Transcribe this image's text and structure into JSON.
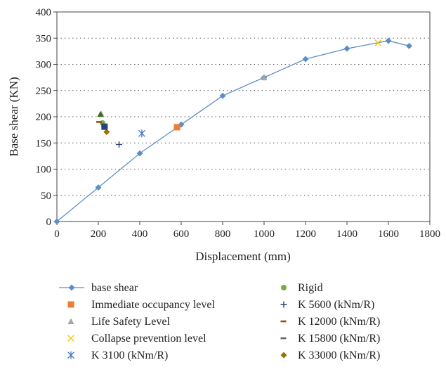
{
  "chart_data": {
    "type": "scatter",
    "xlabel": "Displacement (mm)",
    "ylabel": "Base shear (KN)",
    "xlim": [
      0,
      1800
    ],
    "ylim": [
      0,
      400
    ],
    "x_ticks": [
      0,
      200,
      400,
      600,
      800,
      1000,
      1200,
      1400,
      1600,
      1800
    ],
    "y_ticks": [
      0,
      50,
      100,
      150,
      200,
      250,
      300,
      350,
      400
    ],
    "grid": "dotted horizontal",
    "legend_position": "bottom",
    "series": [
      {
        "name": "base shear",
        "kind": "line",
        "marker": "diamond",
        "color": "#5b8fca",
        "points": [
          [
            0,
            0
          ],
          [
            200,
            65
          ],
          [
            400,
            130
          ],
          [
            600,
            185
          ],
          [
            800,
            240
          ],
          [
            1000,
            275
          ],
          [
            1200,
            310
          ],
          [
            1400,
            330
          ],
          [
            1600,
            345
          ],
          [
            1700,
            335
          ]
        ]
      },
      {
        "name": "Immediate occupancy level",
        "marker": "square",
        "color": "#ed7d31",
        "points": [
          [
            580,
            180
          ]
        ]
      },
      {
        "name": "Life Safety Level",
        "marker": "triangle",
        "color": "#a5a5a5",
        "points": [
          [
            1000,
            275
          ],
          [
            215,
            205
          ]
        ]
      },
      {
        "name": "Collapse prevention level",
        "marker": "x",
        "color": "#ffc000",
        "points": [
          [
            1550,
            341
          ]
        ]
      },
      {
        "name": "K 3100 (kNm/R)",
        "marker": "star",
        "color": "#4472c4",
        "points": [
          [
            410,
            168
          ]
        ]
      },
      {
        "name": "Rigid",
        "marker": "circle",
        "color": "#70ad47",
        "points": [
          [
            220,
            188
          ]
        ]
      },
      {
        "name": "K 5600 (kNm/R)",
        "marker": "plus",
        "color": "#264478",
        "points": [
          [
            300,
            147
          ]
        ]
      },
      {
        "name": "K 12000 (kNm/R)",
        "marker": "dash",
        "color": "#9e480e",
        "points": [
          [
            205,
            190
          ]
        ]
      },
      {
        "name": "K 15800 (kNm/R)",
        "marker": "dash",
        "color": "#636363",
        "points": [
          [
            230,
            183
          ]
        ]
      },
      {
        "name": "K 33000 (kNm/R)",
        "marker": "diamond",
        "color": "#997300",
        "points": [
          [
            240,
            171
          ]
        ]
      },
      {
        "name": "",
        "marker": "square",
        "color": "#264478",
        "points": [
          [
            230,
            181
          ]
        ]
      },
      {
        "name": "",
        "marker": "triangle",
        "color": "#43682b",
        "points": [
          [
            210,
            205
          ]
        ]
      }
    ],
    "legend": [
      {
        "name": "base shear",
        "marker": "diamond",
        "color": "#5b8fca",
        "line": true
      },
      {
        "name": "Rigid",
        "marker": "circle",
        "color": "#70ad47"
      },
      {
        "name": "Immediate occupancy level",
        "marker": "square",
        "color": "#ed7d31"
      },
      {
        "name": "K 5600 (kNm/R)",
        "marker": "plus",
        "color": "#264478"
      },
      {
        "name": "Life Safety Level",
        "marker": "triangle",
        "color": "#a5a5a5"
      },
      {
        "name": "K 12000 (kNm/R)",
        "marker": "dash",
        "color": "#9e480e"
      },
      {
        "name": "Collapse prevention level",
        "marker": "x",
        "color": "#ffc000"
      },
      {
        "name": "K 15800 (kNm/R)",
        "marker": "dash",
        "color": "#636363"
      },
      {
        "name": "K 3100 (kNm/R)",
        "marker": "star",
        "color": "#4472c4"
      },
      {
        "name": "K 33000 (kNm/R)",
        "marker": "diamond",
        "color": "#997300"
      }
    ]
  }
}
